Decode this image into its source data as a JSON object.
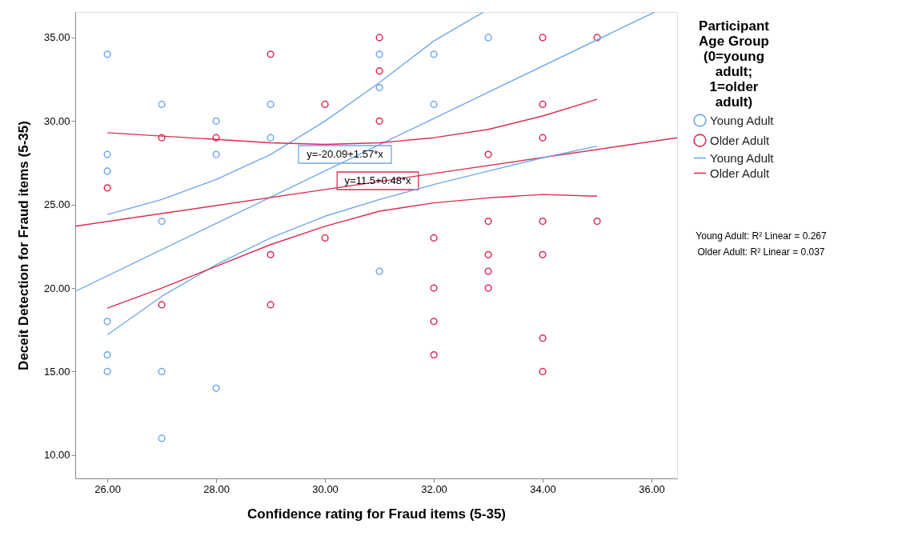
{
  "chart_data": {
    "type": "scatter",
    "xlabel": "Confidence rating for Fraud items (5-35)",
    "ylabel": "Deceit Detection for Fraud items (5-35)",
    "legend_title": "Participant Age Group (0=young adult; 1=older adult)",
    "legend": "right",
    "grid": false,
    "marker": "circle",
    "xlim": [
      25.41,
      36.47
    ],
    "ylim": [
      8.6,
      36.53
    ],
    "xticks": [
      {
        "value": 26,
        "label": "26.00"
      },
      {
        "value": 28,
        "label": "28.00"
      },
      {
        "value": 30,
        "label": "30.00"
      },
      {
        "value": 32,
        "label": "32.00"
      },
      {
        "value": 34,
        "label": "34.00"
      },
      {
        "value": 36,
        "label": "36.00"
      }
    ],
    "yticks": [
      {
        "value": 10,
        "label": "10.00"
      },
      {
        "value": 15,
        "label": "15.00"
      },
      {
        "value": 20,
        "label": "20.00"
      },
      {
        "value": 25,
        "label": "25.00"
      },
      {
        "value": 30,
        "label": "30.00"
      },
      {
        "value": 35,
        "label": "35.00"
      }
    ],
    "annotations": [
      "y=-20.09+1.57*x",
      "y=11.5+0.48*x",
      "Young Adult: R² Linear = 0.267",
      "Older Adult: R² Linear = 0.037"
    ],
    "series": [
      {
        "name": "Young Adult",
        "color": "#6fa8e8",
        "x": [
          26,
          26,
          26,
          26,
          26,
          26,
          27,
          27,
          27,
          27,
          28,
          28,
          28,
          29,
          29,
          31,
          31,
          31,
          32,
          32,
          33
        ],
        "values": [
          34,
          28,
          27,
          18,
          16,
          15,
          31,
          24,
          15,
          11,
          30,
          28,
          14,
          31,
          29,
          34,
          32,
          21,
          34,
          31,
          35
        ]
      },
      {
        "name": "Older Adult",
        "color": "#dc2c54",
        "x": [
          26,
          27,
          27,
          28,
          29,
          29,
          29,
          30,
          30,
          31,
          31,
          31,
          32,
          32,
          32,
          32,
          33,
          33,
          33,
          33,
          33,
          34,
          34,
          34,
          34,
          34,
          34,
          34,
          35,
          35
        ],
        "values": [
          26,
          29,
          19,
          29,
          34,
          22,
          19,
          31,
          23,
          35,
          33,
          30,
          23,
          20,
          18,
          16,
          28,
          24,
          22,
          21,
          20,
          35,
          31,
          29,
          24,
          22,
          17,
          15,
          35,
          24
        ]
      },
      {
        "name": "Young Adult",
        "type": "line",
        "marker": "none",
        "color": "#6fa8e8",
        "x": [
          25.41,
          36.06
        ],
        "values": [
          19.8,
          36.53
        ]
      },
      {
        "name": "Older Adult",
        "type": "line",
        "marker": "none",
        "color": "#dc2c54",
        "x": [
          25.41,
          36.47
        ],
        "values": [
          23.7,
          29.0
        ]
      },
      {
        "type": "line",
        "marker": "none",
        "color": "#6fa8e8",
        "x": [
          26,
          27,
          28,
          29,
          30,
          31,
          32,
          32.9
        ],
        "values": [
          24.4,
          25.3,
          26.5,
          28.0,
          30.0,
          32.3,
          34.8,
          36.5
        ]
      },
      {
        "type": "line",
        "marker": "none",
        "color": "#6fa8e8",
        "x": [
          26,
          27,
          28,
          29,
          30,
          31,
          32,
          33,
          34,
          35
        ],
        "values": [
          17.2,
          19.5,
          21.4,
          23.0,
          24.3,
          25.3,
          26.2,
          27.0,
          27.8,
          28.5
        ]
      },
      {
        "type": "line",
        "marker": "none",
        "color": "#dc2c54",
        "x": [
          26,
          27,
          28,
          29,
          30,
          31,
          32,
          33,
          34,
          35
        ],
        "values": [
          29.3,
          29.1,
          28.9,
          28.7,
          28.6,
          28.7,
          29.0,
          29.5,
          30.3,
          31.3
        ]
      },
      {
        "type": "line",
        "marker": "none",
        "color": "#dc2c54",
        "x": [
          26,
          27,
          28,
          29,
          30,
          31,
          32,
          33,
          34,
          35
        ],
        "values": [
          18.8,
          20.0,
          21.3,
          22.6,
          23.7,
          24.6,
          25.1,
          25.4,
          25.6,
          25.5
        ]
      }
    ]
  }
}
